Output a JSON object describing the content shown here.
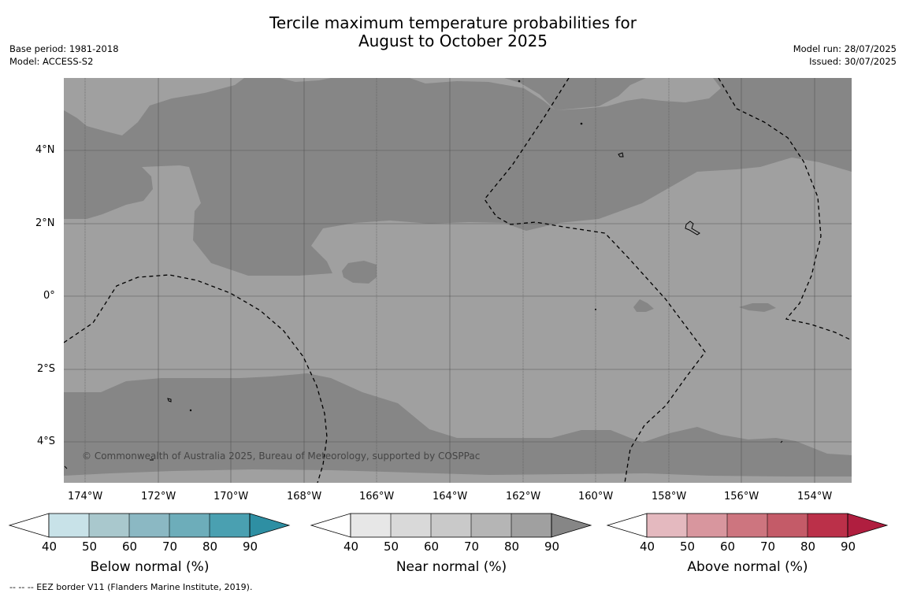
{
  "header": {
    "title_line1": "Tercile maximum temperature probabilities for",
    "title_line2": "August to October 2025",
    "base_period": "Base period: 1981-2018",
    "model": "Model: ACCESS-S2",
    "model_run": "Model run: 28/07/2025",
    "issued": "Issued: 30/07/2025"
  },
  "map": {
    "longitude_ticks": [
      "174°W",
      "172°W",
      "170°W",
      "168°W",
      "166°W",
      "164°W",
      "162°W",
      "160°W",
      "158°W",
      "156°W",
      "154°W"
    ],
    "latitude_ticks": [
      "4°N",
      "2°N",
      "0°",
      "2°S",
      "4°S"
    ],
    "copyright": "© Commonwealth of Australia 2025, Bureau of Meteorology, supported by COSPPac",
    "colors": {
      "near_normal_80_90": "#a0a0a0",
      "near_normal_gt90": "#868686"
    }
  },
  "colorbars": [
    {
      "label": "Below normal (%)",
      "ticks": [
        "40",
        "50",
        "60",
        "70",
        "80",
        "90"
      ],
      "colors": [
        "#ffffff",
        "#c8e2e8",
        "#a9c8cd",
        "#8bb8c3",
        "#6dadba",
        "#4aa0b1",
        "#2e8fa3"
      ]
    },
    {
      "label": "Near normal (%)",
      "ticks": [
        "40",
        "50",
        "60",
        "70",
        "80",
        "90"
      ],
      "colors": [
        "#ffffff",
        "#e7e7e7",
        "#d9d9d9",
        "#c9c9c9",
        "#b5b5b5",
        "#a0a0a0",
        "#868686"
      ]
    },
    {
      "label": "Above normal (%)",
      "ticks": [
        "40",
        "50",
        "60",
        "70",
        "80",
        "90"
      ],
      "colors": [
        "#ffffff",
        "#e4b9bf",
        "#d8969e",
        "#cd757f",
        "#c45b68",
        "#bb3049",
        "#b01e3f"
      ]
    }
  ],
  "footnote": "--  --  -- EEZ border V11 (Flanders Marine Institute, 2019)."
}
